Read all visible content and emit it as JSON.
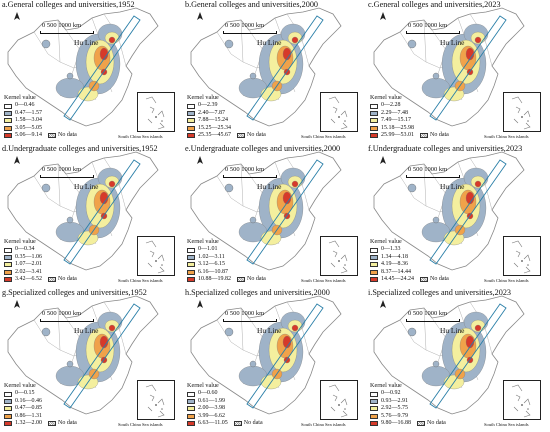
{
  "common": {
    "legend_title": "Kernel value",
    "no_data_label": "No data",
    "hu_line_label": "Hu Line",
    "scale_label": "0   500 1000 km",
    "inset_label": "South China Sea islands",
    "class_colors": [
      "#ffffff",
      "#9fb3c8",
      "#f4ef9e",
      "#f0a24a",
      "#d63a2a"
    ]
  },
  "panels": [
    {
      "title": "a.General colleges and universities,1952",
      "classes": [
        "0—0.46",
        "0.47—1.57",
        "1.58—3.04",
        "3.05—5.05",
        "5.06—9.14"
      ]
    },
    {
      "title": "b.General colleges and universities,2000",
      "classes": [
        "0—2.39",
        "2.40—7.87",
        "7.88—15.24",
        "15.25—25.34",
        "25.35—45.67"
      ]
    },
    {
      "title": "c.General colleges and universities,2023",
      "classes": [
        "0—2.28",
        "2.29—7.48",
        "7.49—15.17",
        "15.18—25.98",
        "25.99—53.01"
      ]
    },
    {
      "title": "d.Undergraduate colleges and universities,1952",
      "classes": [
        "0—0.34",
        "0.35—1.06",
        "1.07—2.01",
        "2.02—3.41",
        "3.42—6.52"
      ]
    },
    {
      "title": "e.Undergraduate colleges and universities,2000",
      "classes": [
        "0—1.01",
        "1.02—3.11",
        "3.12—6.15",
        "6.16—10.87",
        "10.88—19.82"
      ]
    },
    {
      "title": "f.Undergraduate colleges and universities,2023",
      "classes": [
        "0—1.33",
        "1.34—4.18",
        "4.19—8.36",
        "8.37—14.44",
        "14.45—24.24"
      ]
    },
    {
      "title": "g.Specialized colleges and universities,1952",
      "classes": [
        "0—0.15",
        "0.16—0.46",
        "0.47—0.85",
        "0.86—1.31",
        "1.32—2.00"
      ]
    },
    {
      "title": "h.Specialized colleges and universities,2000",
      "classes": [
        "0—0.60",
        "0.61—1.99",
        "2.00—3.98",
        "3.99—6.62",
        "6.63—11.05"
      ]
    },
    {
      "title": "i.Specialized colleges and universities,2023",
      "classes": [
        "0—0.92",
        "0.93—2.91",
        "2.92—5.75",
        "5.76—9.79",
        "9.80—16.88"
      ]
    }
  ]
}
